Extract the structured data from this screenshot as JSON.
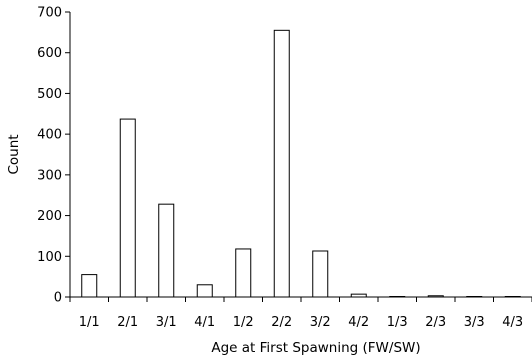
{
  "chart_data": {
    "type": "bar",
    "title": "",
    "xlabel": "Age at First Spawning (FW/SW)",
    "ylabel": "Count",
    "ylim": [
      0,
      700
    ],
    "yticks": [
      0,
      100,
      200,
      300,
      400,
      500,
      600,
      700
    ],
    "grid": false,
    "legend": "none",
    "categories": [
      "1/1",
      "2/1",
      "3/1",
      "4/1",
      "1/2",
      "2/2",
      "3/2",
      "4/2",
      "1/3",
      "2/3",
      "3/3",
      "4/3"
    ],
    "values": [
      55,
      437,
      228,
      30,
      118,
      655,
      113,
      7,
      1,
      3,
      0,
      1
    ],
    "bar_fill": "#ffffff",
    "bar_stroke": "#000000"
  }
}
